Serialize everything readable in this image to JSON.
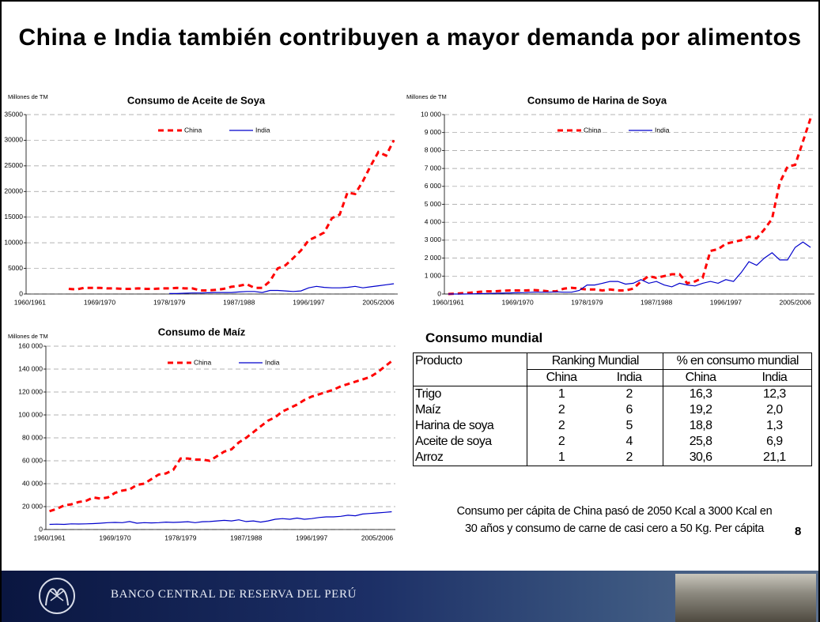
{
  "title": "China e India también contribuyen a mayor demanda por alimentos",
  "chart_data": [
    {
      "type": "line",
      "title": "Consumo de Aceite de Soya",
      "y_label": "Millones de TM",
      "grid": true,
      "categories": [
        "1960/1961",
        null,
        null,
        null,
        null,
        null,
        null,
        null,
        null,
        "1969/1970",
        null,
        null,
        null,
        null,
        null,
        null,
        null,
        null,
        "1978/1979",
        null,
        null,
        null,
        null,
        null,
        null,
        null,
        null,
        "1987/1988",
        null,
        null,
        null,
        null,
        null,
        null,
        null,
        null,
        "1996/1997",
        null,
        null,
        null,
        null,
        null,
        null,
        null,
        null,
        "2005/2006",
        null,
        null
      ],
      "series": [
        {
          "name": "China",
          "color": "#ff0000",
          "line_style": "dashed",
          "values": [
            null,
            null,
            null,
            null,
            null,
            1000,
            900,
            1200,
            1200,
            1200,
            1100,
            1100,
            1000,
            1000,
            1100,
            1000,
            1000,
            1100,
            1100,
            1200,
            1100,
            1100,
            700,
            700,
            800,
            1000,
            1400,
            1600,
            1900,
            1200,
            1200,
            2500,
            5000,
            5600,
            7000,
            8500,
            10500,
            11200,
            12000,
            14800,
            15500,
            19800,
            19500,
            22000,
            25000,
            27700,
            27000,
            30000
          ]
        },
        {
          "name": "India",
          "color": "#0000cc",
          "line_style": "solid",
          "values": [
            null,
            null,
            null,
            null,
            null,
            null,
            null,
            null,
            null,
            null,
            null,
            null,
            null,
            null,
            null,
            null,
            null,
            null,
            100,
            100,
            150,
            200,
            200,
            250,
            300,
            300,
            300,
            400,
            500,
            500,
            300,
            700,
            700,
            600,
            500,
            600,
            1200,
            1500,
            1300,
            1200,
            1200,
            1300,
            1500,
            1200,
            1400,
            1600,
            1800,
            2000
          ]
        }
      ],
      "ylim": [
        0,
        35000
      ],
      "yticks": [
        0,
        5000,
        10000,
        15000,
        20000,
        25000,
        30000,
        35000
      ]
    },
    {
      "type": "line",
      "title": "Consumo de Harina de Soya",
      "y_label": "Millones de TM",
      "grid": true,
      "categories": [
        "1960/1961",
        null,
        null,
        null,
        null,
        null,
        null,
        null,
        null,
        "1969/1970",
        null,
        null,
        null,
        null,
        null,
        null,
        null,
        null,
        "1978/1979",
        null,
        null,
        null,
        null,
        null,
        null,
        null,
        null,
        "1987/1988",
        null,
        null,
        null,
        null,
        null,
        null,
        null,
        null,
        "1996/1997",
        null,
        null,
        null,
        null,
        null,
        null,
        null,
        null,
        "2005/2006",
        null,
        null
      ],
      "series": [
        {
          "name": "China",
          "color": "#ff0000",
          "line_style": "dashed",
          "values": [
            0,
            20,
            50,
            80,
            120,
            150,
            150,
            180,
            200,
            200,
            200,
            220,
            200,
            150,
            150,
            300,
            350,
            300,
            250,
            250,
            200,
            250,
            200,
            200,
            300,
            700,
            1000,
            900,
            1000,
            1100,
            1100,
            600,
            700,
            900,
            2400,
            2500,
            2800,
            2900,
            3000,
            3200,
            3100,
            3600,
            4200,
            6200,
            7100,
            7200,
            8500,
            9800
          ]
        },
        {
          "name": "India",
          "color": "#0000cc",
          "line_style": "solid",
          "values": [
            0,
            0,
            0,
            10,
            20,
            30,
            40,
            50,
            60,
            70,
            80,
            100,
            100,
            100,
            120,
            100,
            100,
            200,
            500,
            500,
            600,
            700,
            700,
            550,
            600,
            800,
            600,
            700,
            500,
            400,
            600,
            500,
            450,
            600,
            700,
            600,
            800,
            700,
            1200,
            1800,
            1600,
            2000,
            2300,
            1900,
            1900,
            2600,
            2900,
            2600
          ]
        }
      ],
      "ylim": [
        0,
        10000
      ],
      "yticks": [
        0,
        {
          "value": 1000,
          "label": "1 000"
        },
        {
          "value": 2000,
          "label": "2 000"
        },
        {
          "value": 3000,
          "label": "3 000"
        },
        {
          "value": 4000,
          "label": "4 000"
        },
        {
          "value": 5000,
          "label": "5 000"
        },
        {
          "value": 6000,
          "label": "6 000"
        },
        {
          "value": 7000,
          "label": "7 000"
        },
        {
          "value": 8000,
          "label": "8 000"
        },
        {
          "value": 9000,
          "label": "9 000"
        },
        {
          "value": 10000,
          "label": "10 000"
        }
      ]
    },
    {
      "type": "line",
      "title": "Consumo de Maíz",
      "y_label": "Millones de TM",
      "grid": true,
      "categories": [
        "1960/1961",
        null,
        null,
        null,
        null,
        null,
        null,
        null,
        null,
        "1969/1970",
        null,
        null,
        null,
        null,
        null,
        null,
        null,
        null,
        "1978/1979",
        null,
        null,
        null,
        null,
        null,
        null,
        null,
        null,
        "1987/1988",
        null,
        null,
        null,
        null,
        null,
        null,
        null,
        null,
        "1996/1997",
        null,
        null,
        null,
        null,
        null,
        null,
        null,
        null,
        "2005/2006",
        null,
        null
      ],
      "series": [
        {
          "name": "China",
          "color": "#ff0000",
          "line_style": "dashed",
          "values": [
            16000,
            18000,
            21000,
            22000,
            24000,
            25000,
            28000,
            27000,
            28000,
            32000,
            34000,
            35000,
            39000,
            40000,
            44000,
            48000,
            49000,
            52000,
            62000,
            62000,
            61000,
            61000,
            60000,
            64000,
            68000,
            70000,
            76000,
            80000,
            85000,
            90000,
            95000,
            98000,
            103000,
            106000,
            109000,
            113000,
            116000,
            118000,
            120000,
            122000,
            125000,
            127000,
            129000,
            131000,
            133000,
            137000,
            142000,
            147000
          ]
        },
        {
          "name": "India",
          "color": "#0000cc",
          "line_style": "solid",
          "values": [
            4500,
            4700,
            4500,
            5000,
            4800,
            5000,
            5200,
            5500,
            6000,
            6200,
            6000,
            7000,
            5500,
            6000,
            5800,
            6000,
            6500,
            6200,
            6500,
            6800,
            6000,
            6800,
            7000,
            7500,
            8000,
            7500,
            8500,
            7000,
            7500,
            6500,
            7500,
            9000,
            9500,
            9000,
            10000,
            9000,
            9500,
            10500,
            11000,
            11000,
            11500,
            12500,
            12000,
            13500,
            14000,
            14500,
            15000,
            15500
          ]
        }
      ],
      "ylim": [
        0,
        160000
      ],
      "yticks": [
        0,
        {
          "value": 20000,
          "label": "20 000"
        },
        {
          "value": 40000,
          "label": "40 000"
        },
        {
          "value": 60000,
          "label": "60 000"
        },
        {
          "value": 80000,
          "label": "80 000"
        },
        {
          "value": 100000,
          "label": "100 000"
        },
        {
          "value": 120000,
          "label": "120 000"
        },
        {
          "value": 140000,
          "label": "140 000"
        },
        {
          "value": 160000,
          "label": "160 000"
        }
      ]
    }
  ],
  "table": {
    "title": "Consumo mundial",
    "header": [
      "Producto",
      "Ranking Mundial",
      "% en consumo mundial"
    ],
    "subheader": [
      "China",
      "India",
      "China",
      "India"
    ],
    "rows": [
      [
        "Trigo",
        "1",
        "2",
        "16,3",
        "12,3"
      ],
      [
        "Maíz",
        "2",
        "6",
        "19,2",
        "2,0"
      ],
      [
        "Harina de soya",
        "2",
        "5",
        "18,8",
        "1,3"
      ],
      [
        "Aceite de soya",
        "2",
        "4",
        "25,8",
        "6,9"
      ],
      [
        "Arroz",
        "1",
        "2",
        "30,6",
        "21,1"
      ]
    ]
  },
  "note": "Consumo per cápita de China pasó de 2050 Kcal a 3000 Kcal en 30 años y consumo de carne de casi cero a 50 Kg. Per cápita",
  "page_number": "8",
  "footer": "BANCO CENTRAL DE RESERVA DEL PERÚ"
}
